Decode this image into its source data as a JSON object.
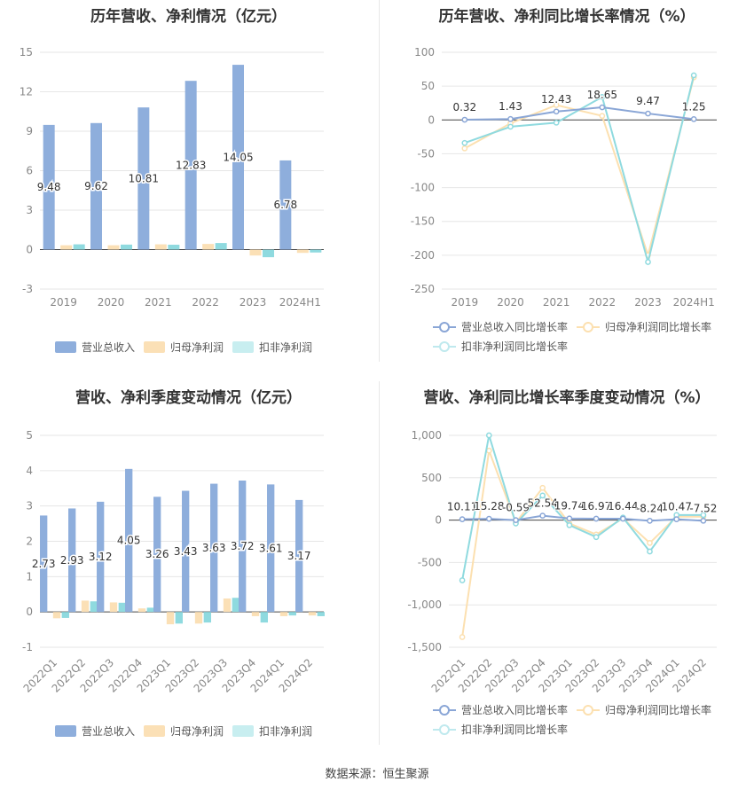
{
  "footer": {
    "source": "数据来源：恒生聚源"
  },
  "chart_data": [
    {
      "type": "bar",
      "title": "历年营收、净利情况（亿元）",
      "categories": [
        "2019",
        "2020",
        "2021",
        "2022",
        "2023",
        "2024H1"
      ],
      "ylim": [
        -3,
        15
      ],
      "yticks": [
        -3,
        0,
        3,
        6,
        9,
        12,
        15
      ],
      "series": [
        {
          "name": "营业总收入",
          "color": "#8eaedc",
          "values": [
            9.48,
            9.62,
            10.81,
            12.83,
            14.05,
            6.78
          ],
          "labels": [
            "9.48",
            "9.62",
            "10.81",
            "12.83",
            "14.05",
            "6.78"
          ]
        },
        {
          "name": "归母净利润",
          "color": "#fbe0b6",
          "values": [
            0.33,
            0.33,
            0.4,
            0.43,
            -0.45,
            -0.25
          ]
        },
        {
          "name": "扣非净利润",
          "color": "#8fdadf",
          "values": [
            0.4,
            0.38,
            0.37,
            0.5,
            -0.58,
            -0.22
          ]
        }
      ],
      "grid": true,
      "legend": "bottom"
    },
    {
      "type": "line",
      "title": "历年营收、净利同比增长率情况（%）",
      "categories": [
        "2019",
        "2020",
        "2021",
        "2022",
        "2023",
        "2024H1"
      ],
      "ylim": [
        -250,
        100
      ],
      "yticks": [
        -250,
        -200,
        -150,
        -100,
        -50,
        0,
        50,
        100
      ],
      "series": [
        {
          "name": "营业总收入同比增长率",
          "color": "#8aa6d6",
          "values": [
            0.32,
            1.43,
            12.43,
            18.65,
            9.47,
            1.25
          ],
          "labels": [
            "0.32",
            "1.43",
            "12.43",
            "18.65",
            "9.47",
            "1.25"
          ]
        },
        {
          "name": "归母净利润同比增长率",
          "color": "#fce0b0",
          "values": [
            -42,
            -5,
            22,
            6,
            -200,
            63
          ]
        },
        {
          "name": "扣非净利润同比增长率",
          "color": "#8fdadf",
          "values": [
            -34,
            -10,
            -4,
            34,
            -210,
            66
          ]
        }
      ],
      "grid": true,
      "legend": "bottom"
    },
    {
      "type": "bar",
      "title": "营收、净利季度变动情况（亿元）",
      "categories": [
        "2022Q1",
        "2022Q2",
        "2022Q3",
        "2022Q4",
        "2023Q1",
        "2023Q2",
        "2023Q3",
        "2023Q4",
        "2024Q1",
        "2024Q2"
      ],
      "ylim": [
        -1,
        5
      ],
      "yticks": [
        -1,
        0,
        1,
        2,
        3,
        4,
        5
      ],
      "series": [
        {
          "name": "营业总收入",
          "color": "#8eaedc",
          "values": [
            2.73,
            2.93,
            3.12,
            4.05,
            3.26,
            3.43,
            3.63,
            3.72,
            3.61,
            3.17
          ],
          "labels": [
            "2.73",
            "2.93",
            "3.12",
            "4.05",
            "3.26",
            "3.43",
            "3.63",
            "3.72",
            "3.61",
            "3.17"
          ]
        },
        {
          "name": "归母净利润",
          "color": "#fbe0b6",
          "values": [
            -0.18,
            0.32,
            0.27,
            0.1,
            -0.35,
            -0.33,
            0.38,
            -0.12,
            -0.12,
            -0.1
          ]
        },
        {
          "name": "扣非净利润",
          "color": "#8fdadf",
          "values": [
            -0.17,
            0.3,
            0.26,
            0.12,
            -0.33,
            -0.3,
            0.4,
            -0.3,
            -0.1,
            -0.12
          ]
        }
      ],
      "grid": true,
      "legend": "bottom"
    },
    {
      "type": "line",
      "title": "营收、净利同比增长率季度变动情况（%）",
      "categories": [
        "2022Q1",
        "2022Q2",
        "2022Q3",
        "2022Q4",
        "2023Q1",
        "2023Q2",
        "2023Q3",
        "2023Q4",
        "2024Q1",
        "2024Q2"
      ],
      "ylim": [
        -1500,
        1000
      ],
      "yticks": [
        -1500,
        -1000,
        -500,
        0,
        500,
        1000
      ],
      "ytick_labels": [
        "-1,500",
        "-1,000",
        "-500",
        "0",
        "500",
        "1,000"
      ],
      "series": [
        {
          "name": "营业总收入同比增长率",
          "color": "#8aa6d6",
          "values": [
            10.11,
            15.28,
            -0.59,
            52.54,
            19.74,
            16.97,
            16.44,
            -8.24,
            10.47,
            -7.52
          ],
          "labels": [
            "10.11",
            "15.28",
            "-0.59",
            "52.54",
            "19.74",
            "16.97",
            "16.44",
            "-8.24",
            "10.47",
            "-7.52"
          ]
        },
        {
          "name": "归母净利润同比增长率",
          "color": "#fce0b0",
          "values": [
            -1380,
            820,
            -30,
            380,
            -40,
            -170,
            20,
            -270,
            40,
            40
          ]
        },
        {
          "name": "扣非净利润同比增长率",
          "color": "#8fdadf",
          "values": [
            -710,
            1000,
            -40,
            290,
            -60,
            -200,
            30,
            -370,
            60,
            60
          ]
        }
      ],
      "grid": true,
      "legend": "bottom"
    }
  ]
}
